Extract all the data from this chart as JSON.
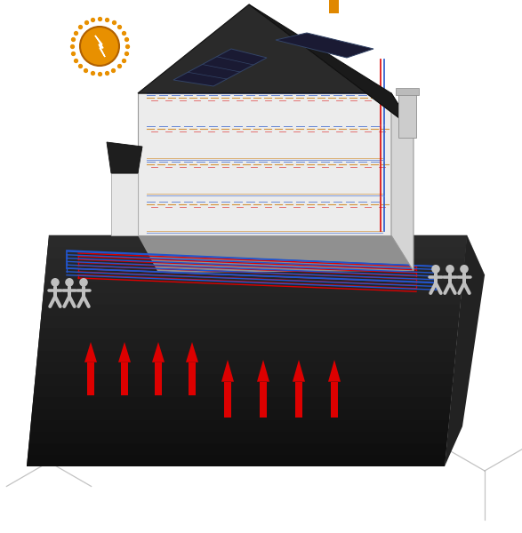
{
  "bg_color": "#ffffff",
  "pipe_red": "#dd0000",
  "pipe_blue": "#2255cc",
  "pipe_orange": "#cc7700",
  "arrow_orange": "#e08800",
  "sun_color": "#e89000",
  "sun_bolt_color": "#ffffff",
  "house_wall_front": "#eeeeee",
  "house_wall_side": "#d8d8d8",
  "house_roof_dark": "#2a2a2a",
  "solar_panel": "#1a1a33",
  "ground_top": "#808080",
  "ground_front": "#1a1a1a",
  "ground_right": "#2e2e2e",
  "figure_color": "#c0c0c0",
  "grid_line_color": "#aaaaaa"
}
